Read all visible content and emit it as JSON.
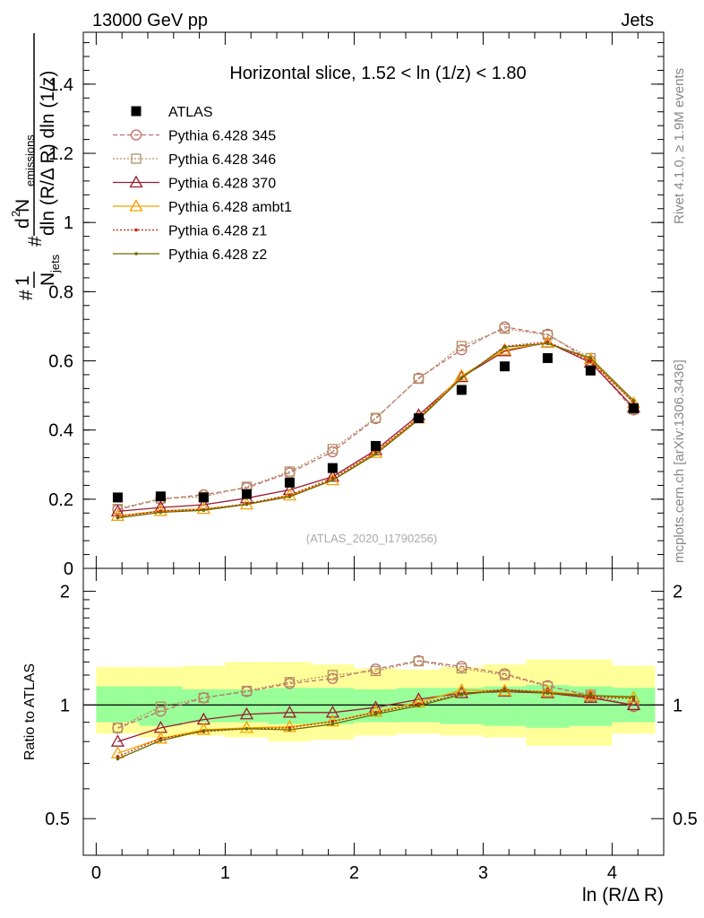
{
  "header": {
    "left": "13000 GeV pp",
    "right": "Jets"
  },
  "side_text": {
    "rivet": "Rivet 4.1.0, ≥ 1.9M events",
    "mcplots": "mcplots.cern.ch [arXiv:1306.3436]"
  },
  "chart_data": [
    {
      "type": "scatter",
      "panel": "main",
      "title": "Horizontal slice, 1.52 < ln (1/z) < 1.80",
      "watermark": "(ATLAS_2020_I1790256)",
      "ylabel_parts": {
        "hash_top": "#",
        "one": "1",
        "n_jets": "N",
        "jets_sub": "jets",
        "hash_mid": "#",
        "d2": "d",
        "d2_sup": "2",
        "n_emissions": " N",
        "emissions_sub": "emissions",
        "denominator": "dln (R/Δ R) dln (1/z)"
      },
      "ylim": [
        0,
        1.55
      ],
      "xlim": [
        -0.1,
        4.4
      ],
      "yticks": [
        0,
        0.2,
        0.4,
        0.6,
        0.8,
        1,
        1.2,
        1.4
      ],
      "ytick_labels": [
        "0",
        "0.2",
        "0.4",
        "0.6",
        "0.8",
        "1",
        "1.2",
        "1.4"
      ],
      "x": [
        0.167,
        0.5,
        0.833,
        1.167,
        1.5,
        1.833,
        2.167,
        2.5,
        2.833,
        3.167,
        3.5,
        3.833,
        4.167
      ],
      "legend_position": "top-left",
      "series": [
        {
          "name": "ATLAS",
          "color": "#000000",
          "marker": "square-filled",
          "line": "none",
          "values": [
            0.205,
            0.208,
            0.205,
            0.215,
            0.248,
            0.29,
            0.354,
            0.434,
            0.516,
            0.584,
            0.608,
            0.572,
            0.463
          ]
        },
        {
          "name": "Pythia 6.428 345",
          "color": "#c36b6b",
          "marker": "circle-open",
          "line": "dashed",
          "values": [
            0.17,
            0.2,
            0.213,
            0.233,
            0.276,
            0.337,
            0.433,
            0.55,
            0.632,
            0.698,
            0.677,
            0.6,
            0.458
          ]
        },
        {
          "name": "Pythia 6.428 346",
          "color": "#b09060",
          "marker": "square-open",
          "line": "dotted",
          "values": [
            0.172,
            0.202,
            0.207,
            0.236,
            0.28,
            0.345,
            0.435,
            0.548,
            0.643,
            0.693,
            0.675,
            0.608,
            0.46
          ]
        },
        {
          "name": "Pythia 6.428 370",
          "color": "#9b1b30",
          "marker": "triangle-open",
          "line": "solid",
          "values": [
            0.165,
            0.176,
            0.184,
            0.203,
            0.227,
            0.265,
            0.342,
            0.443,
            0.553,
            0.628,
            0.653,
            0.595,
            0.465
          ]
        },
        {
          "name": "Pythia 6.428 ambt1",
          "color": "#f5a000",
          "marker": "triangle-open",
          "line": "solid",
          "values": [
            0.152,
            0.166,
            0.172,
            0.185,
            0.211,
            0.255,
            0.334,
            0.434,
            0.557,
            0.632,
            0.652,
            0.605,
            0.478
          ]
        },
        {
          "name": "Pythia 6.428 z1",
          "color": "#cc2200",
          "marker": "dot",
          "line": "dotted",
          "values": [
            0.15,
            0.166,
            0.17,
            0.187,
            0.212,
            0.26,
            0.336,
            0.436,
            0.55,
            0.642,
            0.655,
            0.6,
            0.48
          ]
        },
        {
          "name": "Pythia 6.428 z2",
          "color": "#6b6b00",
          "marker": "dot",
          "line": "solid",
          "values": [
            0.146,
            0.162,
            0.168,
            0.185,
            0.207,
            0.255,
            0.33,
            0.43,
            0.55,
            0.64,
            0.65,
            0.608,
            0.485
          ]
        }
      ]
    },
    {
      "type": "scatter",
      "panel": "ratio",
      "ylabel": "Ratio to ATLAS",
      "xlabel": "ln (R/Δ R)",
      "ylim": [
        0.4,
        2.3
      ],
      "yscale": "log",
      "yticks": [
        0.5,
        1,
        2
      ],
      "ytick_labels": [
        "0.5",
        "1",
        "2"
      ],
      "xlim": [
        -0.1,
        4.4
      ],
      "xticks": [
        0,
        1,
        2,
        3,
        4
      ],
      "xtick_labels": [
        "0",
        "1",
        "2",
        "3",
        "4"
      ],
      "x": [
        0.167,
        0.5,
        0.833,
        1.167,
        1.5,
        1.833,
        2.167,
        2.5,
        2.833,
        3.167,
        3.5,
        3.833,
        4.167
      ],
      "bin_edges": [
        0,
        0.333,
        0.667,
        1,
        1.333,
        1.667,
        2,
        2.333,
        2.667,
        3,
        3.333,
        3.667,
        4,
        4.333
      ],
      "band_green": [
        [
          0.9,
          1.12
        ],
        [
          0.88,
          1.12
        ],
        [
          0.9,
          1.1
        ],
        [
          0.9,
          1.1
        ],
        [
          0.89,
          1.11
        ],
        [
          0.89,
          1.11
        ],
        [
          0.9,
          1.1
        ],
        [
          0.9,
          1.11
        ],
        [
          0.89,
          1.11
        ],
        [
          0.88,
          1.12
        ],
        [
          0.87,
          1.13
        ],
        [
          0.88,
          1.12
        ],
        [
          0.9,
          1.11
        ]
      ],
      "band_yellow": [
        [
          0.84,
          1.26
        ],
        [
          0.82,
          1.26
        ],
        [
          0.83,
          1.27
        ],
        [
          0.82,
          1.3
        ],
        [
          0.8,
          1.3
        ],
        [
          0.81,
          1.28
        ],
        [
          0.83,
          1.25
        ],
        [
          0.84,
          1.24
        ],
        [
          0.83,
          1.26
        ],
        [
          0.82,
          1.28
        ],
        [
          0.78,
          1.32
        ],
        [
          0.78,
          1.32
        ],
        [
          0.84,
          1.27
        ]
      ],
      "series": [
        {
          "name": "Pythia 6.428 345",
          "color": "#c36b6b",
          "marker": "circle-open",
          "line": "dashed",
          "values": [
            0.868,
            0.963,
            1.045,
            1.085,
            1.14,
            1.175,
            1.245,
            1.31,
            1.265,
            1.21,
            1.125,
            1.055,
            0.99
          ]
        },
        {
          "name": "Pythia 6.428 346",
          "color": "#b09060",
          "marker": "square-open",
          "line": "dotted",
          "values": [
            0.87,
            0.99,
            1.045,
            1.09,
            1.15,
            1.2,
            1.23,
            1.305,
            1.25,
            1.2,
            1.12,
            1.065,
            0.995
          ]
        },
        {
          "name": "Pythia 6.428 370",
          "color": "#9b1b30",
          "marker": "triangle-open",
          "line": "solid",
          "values": [
            0.8,
            0.87,
            0.915,
            0.945,
            0.955,
            0.955,
            0.985,
            1.035,
            1.075,
            1.085,
            1.075,
            1.045,
            1.0
          ]
        },
        {
          "name": "Pythia 6.428 ambt1",
          "color": "#f5a000",
          "marker": "triangle-open",
          "line": "solid",
          "values": [
            0.745,
            0.815,
            0.86,
            0.87,
            0.875,
            0.905,
            0.96,
            1.015,
            1.095,
            1.09,
            1.085,
            1.06,
            1.045
          ]
        },
        {
          "name": "Pythia 6.428 z1",
          "color": "#cc2200",
          "marker": "dot",
          "line": "dotted",
          "values": [
            0.73,
            0.815,
            0.85,
            0.865,
            0.87,
            0.905,
            0.955,
            1.005,
            1.07,
            1.1,
            1.08,
            1.05,
            1.04
          ]
        },
        {
          "name": "Pythia 6.428 z2",
          "color": "#6b6b00",
          "marker": "dot",
          "line": "solid",
          "values": [
            0.72,
            0.805,
            0.855,
            0.865,
            0.86,
            0.89,
            0.945,
            0.995,
            1.065,
            1.095,
            1.075,
            1.06,
            1.05
          ]
        }
      ]
    }
  ]
}
